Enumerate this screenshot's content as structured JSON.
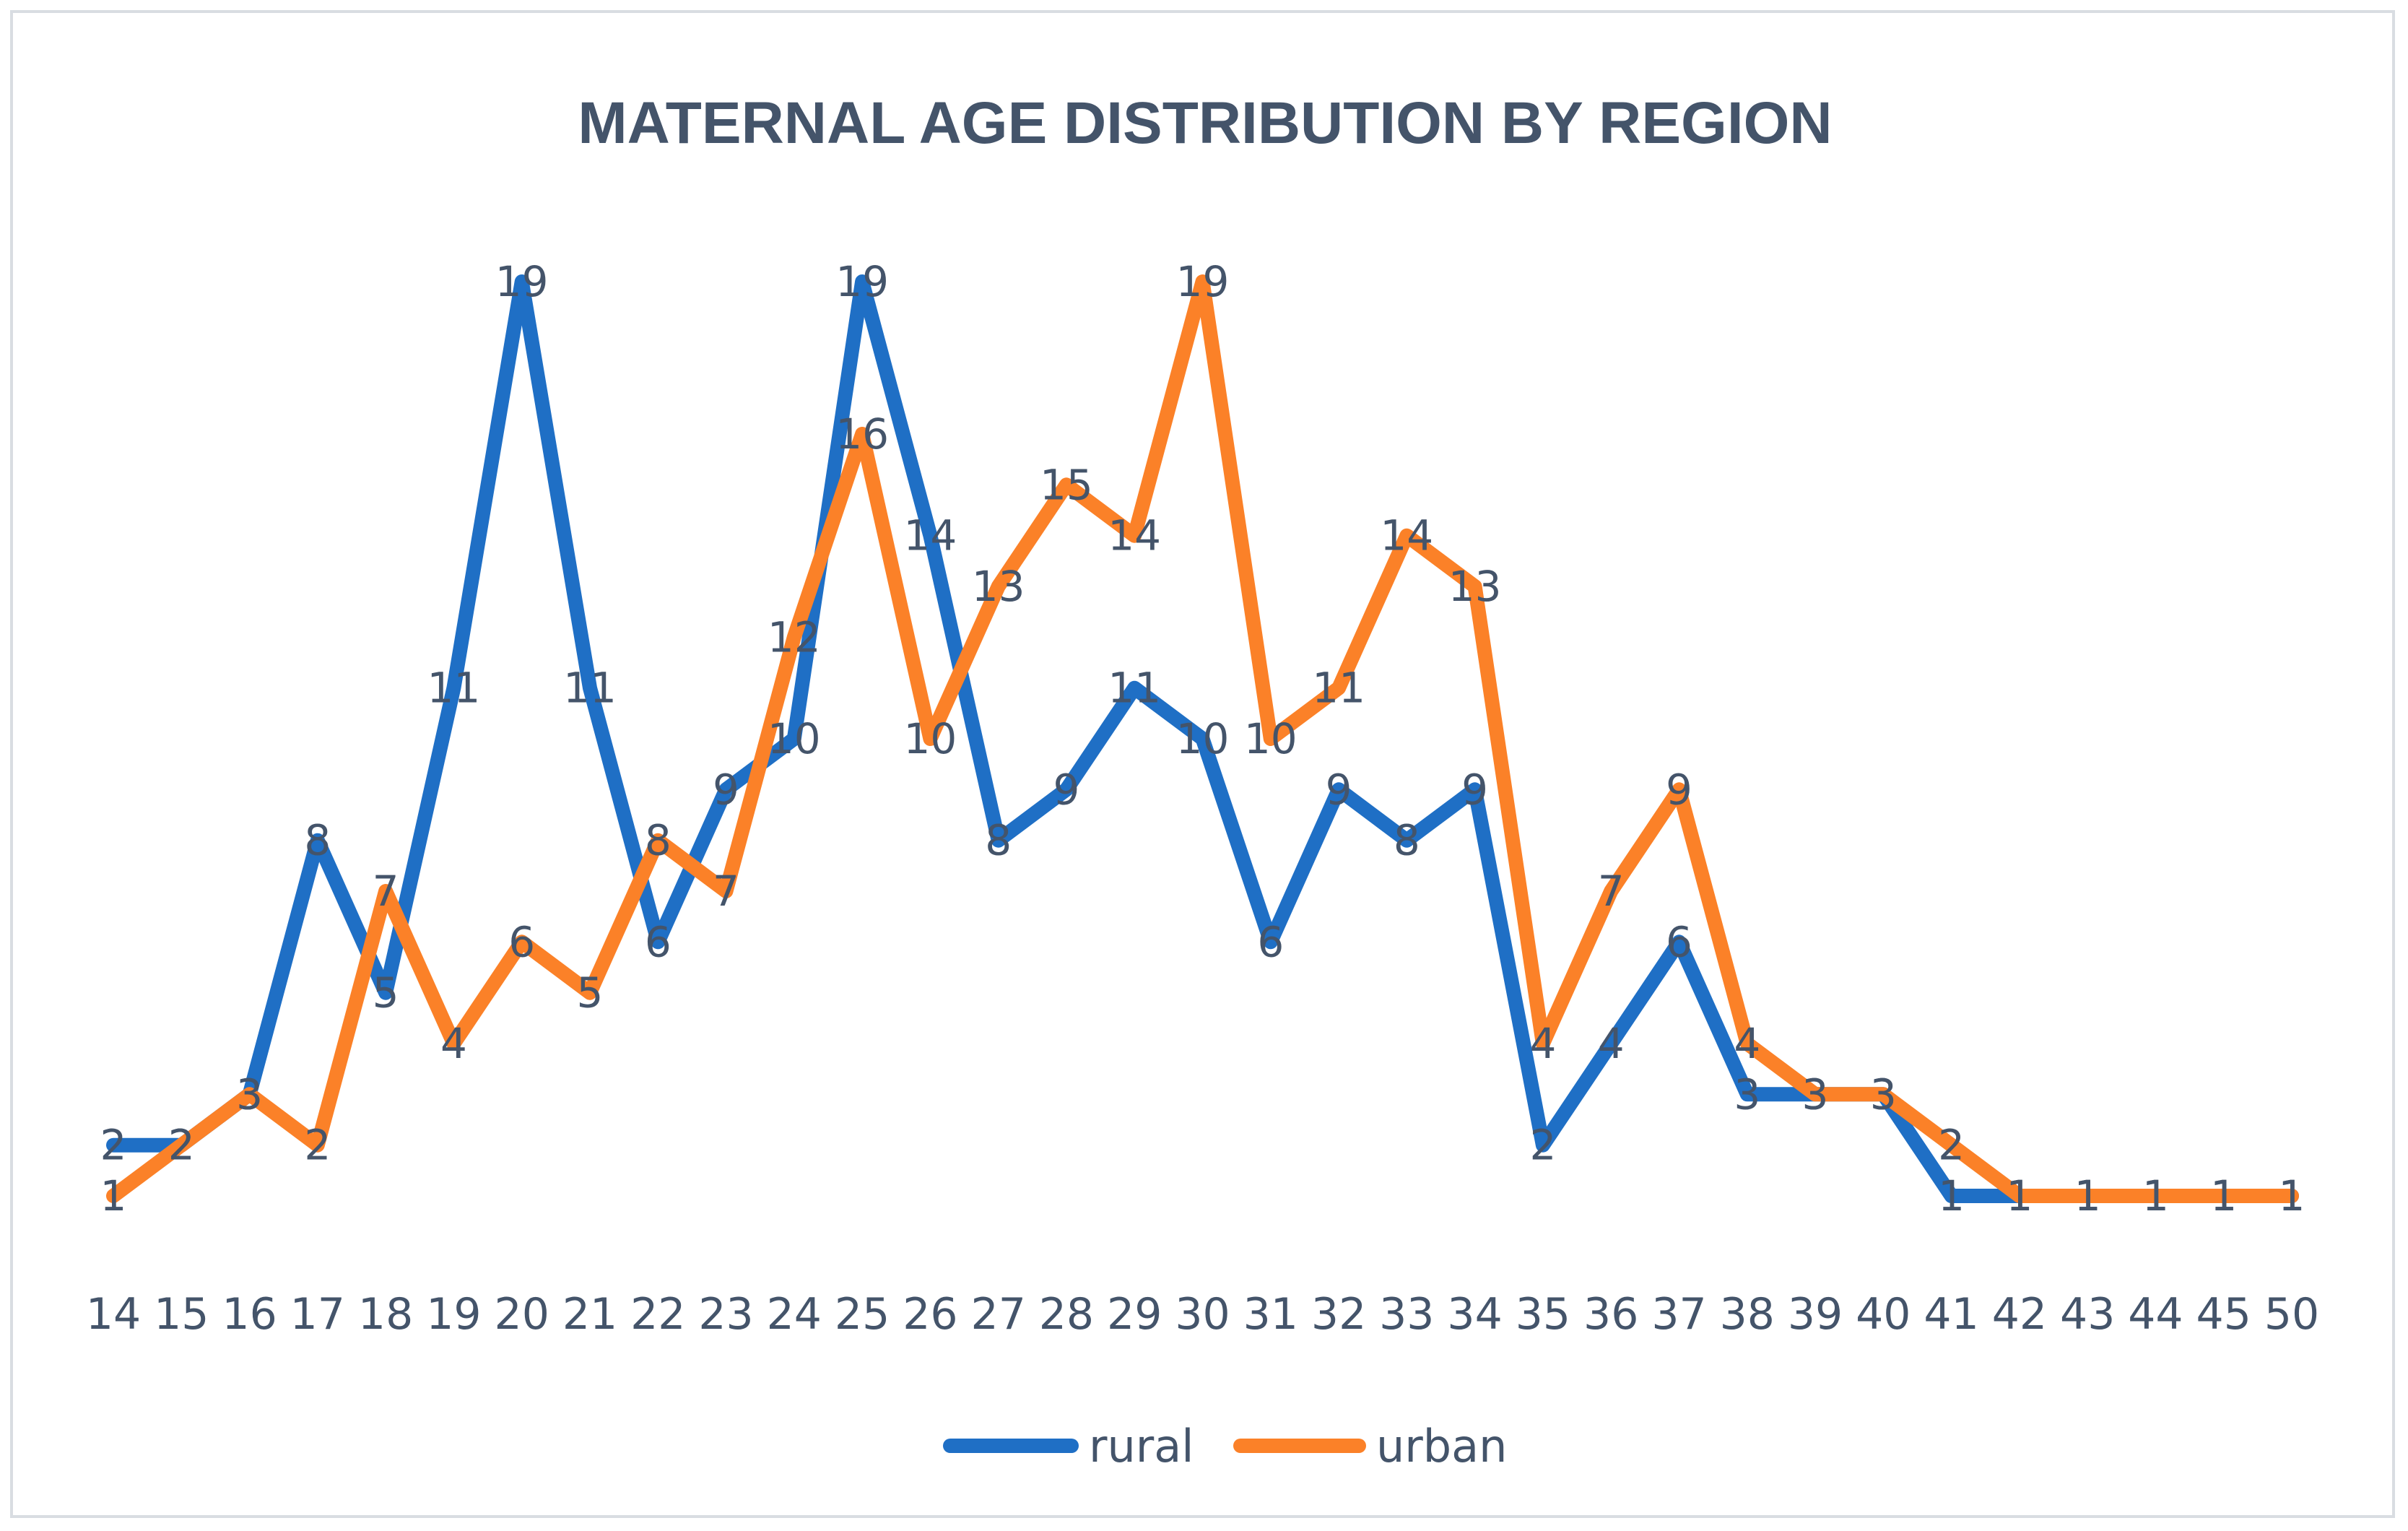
{
  "chart_data": {
    "type": "line",
    "title": "MATERNAL AGE DISTRIBUTION BY REGION",
    "xlabel": "",
    "ylabel": "",
    "categories": [
      "14",
      "15",
      "16",
      "17",
      "18",
      "19",
      "20",
      "21",
      "22",
      "23",
      "24",
      "25",
      "26",
      "27",
      "28",
      "29",
      "30",
      "31",
      "32",
      "33",
      "34",
      "35",
      "36",
      "37",
      "38",
      "39",
      "40",
      "41",
      "42",
      "43",
      "44",
      "45",
      "50"
    ],
    "ylim": [
      0,
      20
    ],
    "grid": false,
    "legend_position": "bottom",
    "series": [
      {
        "name": "rural",
        "color": "#1f6fc5",
        "values": [
          2,
          2,
          3,
          8,
          5,
          11,
          19,
          11,
          6,
          9,
          10,
          19,
          14,
          8,
          9,
          11,
          10,
          6,
          9,
          8,
          9,
          2,
          4,
          6,
          3,
          3,
          3,
          1,
          1,
          1,
          1,
          1,
          1
        ]
      },
      {
        "name": "urban",
        "color": "#fb8128",
        "values": [
          1,
          2,
          3,
          2,
          7,
          4,
          6,
          5,
          8,
          7,
          12,
          16,
          10,
          13,
          15,
          14,
          19,
          10,
          11,
          14,
          13,
          4,
          7,
          9,
          4,
          3,
          3,
          2,
          1,
          1,
          1,
          1,
          1
        ]
      }
    ]
  }
}
